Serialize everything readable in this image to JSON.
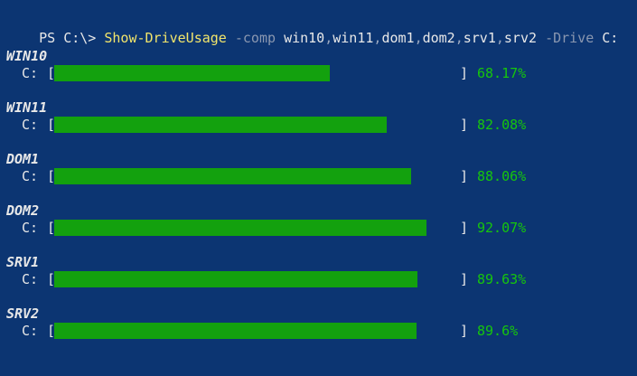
{
  "prompt": {
    "ps": "PS C:\\>",
    "command": "Show-DriveUsage",
    "comp_param": "-comp",
    "computers": [
      "win10",
      "win11",
      "dom1",
      "dom2",
      "srv1",
      "srv2"
    ],
    "separator": ",",
    "drive_param": "-Drive",
    "drive_arg": "C:"
  },
  "results": [
    {
      "host": "WIN10",
      "drive": "C:",
      "percent": 68.17,
      "percent_label": "68.17%"
    },
    {
      "host": "WIN11",
      "drive": "C:",
      "percent": 82.08,
      "percent_label": "82.08%"
    },
    {
      "host": "DOM1",
      "drive": "C:",
      "percent": 88.06,
      "percent_label": "88.06%"
    },
    {
      "host": "DOM2",
      "drive": "C:",
      "percent": 92.07,
      "percent_label": "92.07%"
    },
    {
      "host": "SRV1",
      "drive": "C:",
      "percent": 89.63,
      "percent_label": "89.63%"
    },
    {
      "host": "SRV2",
      "drive": "C:",
      "percent": 89.6,
      "percent_label": "89.6%"
    }
  ],
  "brackets": {
    "open": "[",
    "close": "]"
  },
  "colors": {
    "background": "#0c3572",
    "bar": "#13a10e",
    "percent_text": "#16c60c",
    "command": "#f2e56b",
    "parameter": "#8a97b0"
  }
}
